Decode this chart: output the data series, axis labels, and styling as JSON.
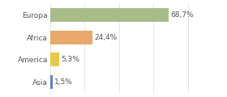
{
  "categories": [
    "Europa",
    "Africa",
    "America",
    "Asia"
  ],
  "values": [
    68.7,
    24.4,
    5.3,
    1.5
  ],
  "labels": [
    "68,7%",
    "24,4%",
    "5,3%",
    "1,5%"
  ],
  "bar_colors": [
    "#a8bc8a",
    "#e8a86a",
    "#e8c84a",
    "#6080c8"
  ],
  "background_color": "#ffffff",
  "xlim": [
    0,
    100
  ],
  "label_fontsize": 6.5,
  "tick_fontsize": 6.5,
  "bar_height": 0.62,
  "text_color": "#555555"
}
